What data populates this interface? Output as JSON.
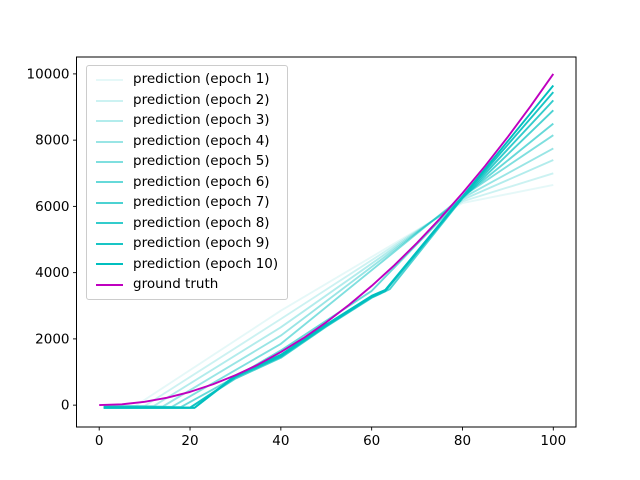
{
  "chart_data": {
    "type": "line",
    "title": "",
    "xlabel": "",
    "ylabel": "",
    "xlim": [
      -5,
      105
    ],
    "ylim": [
      -660,
      10510
    ],
    "x_ticks": [
      0,
      20,
      40,
      60,
      80,
      100
    ],
    "y_ticks": [
      0,
      2000,
      4000,
      6000,
      8000,
      10000
    ],
    "grid": false,
    "legend_position": "upper left",
    "colors": {
      "prediction": "#00bfbf",
      "ground_truth": "#bf00bf",
      "spine": "#000000",
      "legend_border": "#cccccc"
    },
    "series": [
      {
        "name": "prediction (epoch 1)",
        "color": "#00bfbf",
        "opacity": 0.1,
        "x": [
          1,
          8,
          40,
          80,
          100
        ],
        "y": [
          -20,
          -20,
          2850,
          6100,
          6650
        ]
      },
      {
        "name": "prediction (epoch 2)",
        "color": "#00bfbf",
        "opacity": 0.2,
        "x": [
          1,
          10,
          40,
          80,
          100
        ],
        "y": [
          -25,
          -25,
          2600,
          6150,
          7000
        ]
      },
      {
        "name": "prediction (epoch 3)",
        "color": "#00bfbf",
        "opacity": 0.3,
        "x": [
          1,
          12,
          40,
          80,
          100
        ],
        "y": [
          -30,
          -30,
          2350,
          6200,
          7400
        ]
      },
      {
        "name": "prediction (epoch 4)",
        "color": "#00bfbf",
        "opacity": 0.4,
        "x": [
          1,
          14,
          40,
          80,
          100
        ],
        "y": [
          -40,
          -40,
          2100,
          6250,
          7750
        ]
      },
      {
        "name": "prediction (epoch 5)",
        "color": "#00bfbf",
        "opacity": 0.5,
        "x": [
          1,
          16,
          40,
          80,
          100
        ],
        "y": [
          -50,
          -50,
          1850,
          6300,
          8150
        ]
      },
      {
        "name": "prediction (epoch 6)",
        "color": "#00bfbf",
        "opacity": 0.6,
        "x": [
          1,
          18,
          30,
          40,
          60,
          80,
          100
        ],
        "y": [
          -60,
          -60,
          850,
          1650,
          3450,
          6280,
          8500
        ]
      },
      {
        "name": "prediction (epoch 7)",
        "color": "#00bfbf",
        "opacity": 0.7,
        "x": [
          1,
          20,
          30,
          40,
          50,
          60,
          64,
          80,
          100
        ],
        "y": [
          -70,
          -70,
          800,
          1430,
          2370,
          3240,
          3500,
          6250,
          8900
        ]
      },
      {
        "name": "prediction (epoch 8)",
        "color": "#00bfbf",
        "opacity": 0.8,
        "x": [
          1,
          20,
          30,
          40,
          50,
          60,
          63,
          80,
          100
        ],
        "y": [
          -80,
          -80,
          840,
          1460,
          2390,
          3260,
          3440,
          6260,
          9200
        ]
      },
      {
        "name": "prediction (epoch 9)",
        "color": "#00bfbf",
        "opacity": 0.9,
        "x": [
          1,
          21,
          30,
          40,
          50,
          60,
          63,
          80,
          100
        ],
        "y": [
          -80,
          -80,
          870,
          1490,
          2410,
          3280,
          3460,
          6280,
          9450
        ]
      },
      {
        "name": "prediction (epoch 10)",
        "color": "#00bfbf",
        "opacity": 1.0,
        "x": [
          1,
          21,
          30,
          40,
          50,
          60,
          63,
          80,
          100
        ],
        "y": [
          -80,
          -80,
          900,
          1520,
          2430,
          3300,
          3480,
          6300,
          9650
        ]
      },
      {
        "name": "ground truth",
        "color": "#bf00bf",
        "opacity": 1.0,
        "x": [
          0,
          5,
          10,
          15,
          20,
          25,
          30,
          35,
          40,
          45,
          50,
          55,
          60,
          65,
          70,
          75,
          80,
          85,
          90,
          95,
          100
        ],
        "y": [
          0,
          25,
          100,
          225,
          400,
          625,
          900,
          1225,
          1600,
          2025,
          2500,
          3025,
          3600,
          4225,
          4900,
          5625,
          6400,
          7225,
          8100,
          9025,
          10000
        ]
      }
    ]
  }
}
